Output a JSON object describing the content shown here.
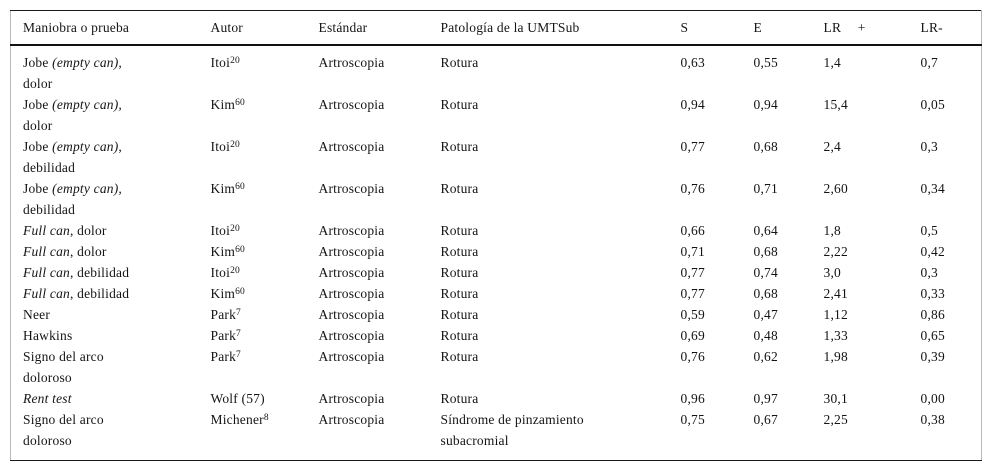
{
  "table": {
    "columns": [
      {
        "key": "maniobra",
        "label": "Maniobra o prueba"
      },
      {
        "key": "autor",
        "label": "Autor"
      },
      {
        "key": "estandar",
        "label": "Estándar"
      },
      {
        "key": "patologia",
        "label": "Patología de la UMTSub"
      },
      {
        "key": "s",
        "label": "S"
      },
      {
        "key": "e",
        "label": "E"
      },
      {
        "key": "lr_plus",
        "label": "LR +"
      },
      {
        "key": "lr_minus",
        "label": "LR-"
      }
    ],
    "rows": [
      {
        "maniobra": [
          [
            {
              "t": "Jobe ",
              "i": false
            },
            {
              "t": "(empty can),",
              "i": true
            }
          ],
          [
            {
              "t": "dolor",
              "i": false
            }
          ]
        ],
        "autor": {
          "name": "Itoi",
          "sup": "20"
        },
        "estandar": "Artroscopia",
        "patologia": [
          "Rotura"
        ],
        "s": "0,63",
        "e": "0,55",
        "lr_plus": "1,4",
        "lr_minus": "0,7"
      },
      {
        "maniobra": [
          [
            {
              "t": "Jobe ",
              "i": false
            },
            {
              "t": "(empty can),",
              "i": true
            }
          ],
          [
            {
              "t": "dolor",
              "i": false
            }
          ]
        ],
        "autor": {
          "name": "Kim",
          "sup": "60"
        },
        "estandar": "Artroscopia",
        "patologia": [
          "Rotura"
        ],
        "s": "0,94",
        "e": "0,94",
        "lr_plus": "15,4",
        "lr_minus": "0,05"
      },
      {
        "maniobra": [
          [
            {
              "t": "Jobe ",
              "i": false
            },
            {
              "t": "(empty can),",
              "i": true
            }
          ],
          [
            {
              "t": "debilidad",
              "i": false
            }
          ]
        ],
        "autor": {
          "name": "Itoi",
          "sup": "20"
        },
        "estandar": "Artroscopia",
        "patologia": [
          "Rotura"
        ],
        "s": "0,77",
        "e": "0,68",
        "lr_plus": "2,4",
        "lr_minus": "0,3"
      },
      {
        "maniobra": [
          [
            {
              "t": "Jobe ",
              "i": false
            },
            {
              "t": "(empty can),",
              "i": true
            }
          ],
          [
            {
              "t": "debilidad",
              "i": false
            }
          ]
        ],
        "autor": {
          "name": "Kim",
          "sup": "60"
        },
        "estandar": "Artroscopia",
        "patologia": [
          "Rotura"
        ],
        "s": "0,76",
        "e": "0,71",
        "lr_plus": "2,60",
        "lr_minus": "0,34"
      },
      {
        "maniobra": [
          [
            {
              "t": "Full can",
              "i": true
            },
            {
              "t": ", dolor",
              "i": false
            }
          ]
        ],
        "autor": {
          "name": "Itoi",
          "sup": "20"
        },
        "estandar": "Artroscopia",
        "patologia": [
          "Rotura"
        ],
        "s": "0,66",
        "e": "0,64",
        "lr_plus": "1,8",
        "lr_minus": "0,5"
      },
      {
        "maniobra": [
          [
            {
              "t": "Full can",
              "i": true
            },
            {
              "t": ", dolor",
              "i": false
            }
          ]
        ],
        "autor": {
          "name": "Kim",
          "sup": "60"
        },
        "estandar": "Artroscopia",
        "patologia": [
          "Rotura"
        ],
        "s": "0,71",
        "e": "0,68",
        "lr_plus": "2,22",
        "lr_minus": "0,42"
      },
      {
        "maniobra": [
          [
            {
              "t": "Full can",
              "i": true
            },
            {
              "t": ", debilidad",
              "i": false
            }
          ]
        ],
        "autor": {
          "name": "Itoi",
          "sup": "20"
        },
        "estandar": "Artroscopia",
        "patologia": [
          "Rotura"
        ],
        "s": "0,77",
        "e": "0,74",
        "lr_plus": "3,0",
        "lr_minus": "0,3"
      },
      {
        "maniobra": [
          [
            {
              "t": "Full can",
              "i": true
            },
            {
              "t": ", debilidad",
              "i": false
            }
          ]
        ],
        "autor": {
          "name": "Kim",
          "sup": "60"
        },
        "estandar": "Artroscopia",
        "patologia": [
          "Rotura"
        ],
        "s": "0,77",
        "e": "0,68",
        "lr_plus": "2,41",
        "lr_minus": "0,33"
      },
      {
        "maniobra": [
          [
            {
              "t": "Neer",
              "i": false
            }
          ]
        ],
        "autor": {
          "name": "Park",
          "sup": "7"
        },
        "estandar": "Artroscopia",
        "patologia": [
          "Rotura"
        ],
        "s": "0,59",
        "e": "0,47",
        "lr_plus": "1,12",
        "lr_minus": "0,86"
      },
      {
        "maniobra": [
          [
            {
              "t": "Hawkins",
              "i": false
            }
          ]
        ],
        "autor": {
          "name": "Park",
          "sup": "7"
        },
        "estandar": "Artroscopia",
        "patologia": [
          "Rotura"
        ],
        "s": "0,69",
        "e": "0,48",
        "lr_plus": "1,33",
        "lr_minus": "0,65"
      },
      {
        "maniobra": [
          [
            {
              "t": "Signo del arco",
              "i": false
            }
          ],
          [
            {
              "t": "doloroso",
              "i": false
            }
          ]
        ],
        "autor": {
          "name": "Park",
          "sup": "7"
        },
        "estandar": "Artroscopia",
        "patologia": [
          "Rotura"
        ],
        "s": "0,76",
        "e": "0,62",
        "lr_plus": "1,98",
        "lr_minus": "0,39"
      },
      {
        "maniobra": [
          [
            {
              "t": "Rent test",
              "i": true
            }
          ]
        ],
        "autor": {
          "name": "Wolf (57)",
          "sup": ""
        },
        "estandar": "Artroscopia",
        "patologia": [
          "Rotura"
        ],
        "s": "0,96",
        "e": "0,97",
        "lr_plus": "30,1",
        "lr_minus": "0,00"
      },
      {
        "maniobra": [
          [
            {
              "t": "Signo del arco",
              "i": false
            }
          ],
          [
            {
              "t": "doloroso",
              "i": false
            }
          ]
        ],
        "autor": {
          "name": "Michener",
          "sup": "8"
        },
        "estandar": "Artroscopia",
        "patologia": [
          "Síndrome de pinzamiento",
          "subacromial"
        ],
        "s": "0,75",
        "e": "0,67",
        "lr_plus": "2,25",
        "lr_minus": "0,38"
      }
    ]
  },
  "colors": {
    "background": "#ffffff",
    "text": "#141414",
    "rule": "#1a1a1a",
    "frame_side": "#b8b8b8"
  }
}
